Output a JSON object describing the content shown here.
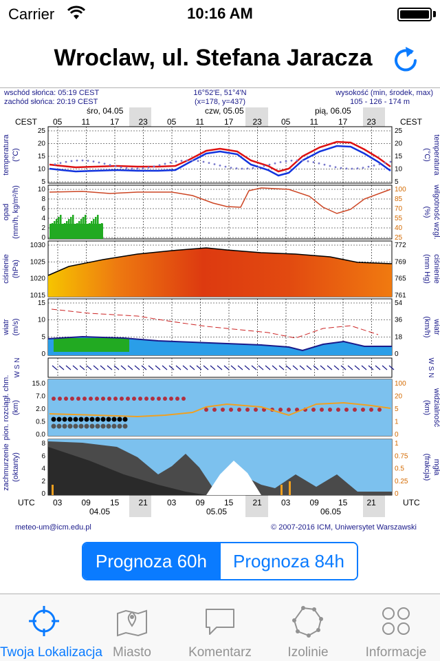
{
  "status": {
    "carrier": "Carrier",
    "time": "10:16 AM"
  },
  "nav": {
    "title": "Wroclaw, ul. Stefana Jaracza",
    "refresh_icon": "refresh-icon"
  },
  "meteogram": {
    "header": {
      "sunrise": "wschód słońca: 05:19 CEST",
      "sunset": "zachód słońca: 20:19 CEST",
      "coords": "16°52'E, 51°4'N",
      "grid": "(x=178, y=437)",
      "elev_title": "wysokość (min, środek, max)",
      "elev_values": "105 - 126 - 174 m"
    },
    "days_top": [
      "śro, 04.05",
      "czw, 05.05",
      "pią, 06.05"
    ],
    "tz_top": "CEST",
    "hours_top": [
      "05",
      "11",
      "17",
      "23",
      "05",
      "11",
      "17",
      "23",
      "05",
      "11",
      "17",
      "23"
    ],
    "hours_bottom": [
      "03",
      "09",
      "15",
      "21",
      "03",
      "09",
      "15",
      "21",
      "03",
      "09",
      "15",
      "21"
    ],
    "days_bottom": [
      "04.05",
      "05.05",
      "06.05"
    ],
    "tz_bottom": "UTC",
    "panels": {
      "temperature": {
        "left_label": "temperatura",
        "left_unit": "(°C)",
        "right_label": "temperatura",
        "right_unit": "(°C)",
        "ticks_left": [
          "25",
          "20",
          "15",
          "10",
          "5"
        ],
        "ticks_right": [
          "25",
          "20",
          "15",
          "10",
          "5"
        ],
        "colors": {
          "temp": "#dd1111",
          "dew": "#1133dd",
          "chill": "#7777cc"
        }
      },
      "precip": {
        "left_label": "opad",
        "left_unit": "(mm/h, kg/m²/h)",
        "right_label": "wilgotność wzgl.",
        "right_unit": "(%)",
        "ticks_left": [
          "10",
          "8",
          "6",
          "4",
          "2",
          "0"
        ],
        "ticks_right": [
          "100",
          "85",
          "70",
          "55",
          "40",
          "25"
        ],
        "colors": {
          "rain": "#22aa22",
          "humidity": "#cc4422"
        }
      },
      "pressure": {
        "left_label": "ciśnienie",
        "left_unit": "(hPa)",
        "right_label": "ciśnienie",
        "right_unit": "(mm Hg)",
        "ticks_left": [
          "1030",
          "1025",
          "1020",
          "1015"
        ],
        "ticks_right": [
          "772",
          "769",
          "765",
          "761"
        ]
      },
      "wind": {
        "left_label": "wiatr",
        "left_unit": "(m/s)",
        "right_label": "wiatr",
        "right_unit": "(km/h)",
        "ticks_left": [
          "15",
          "10",
          "5",
          "0"
        ],
        "ticks_right": [
          "54",
          "36",
          "18",
          "0"
        ]
      },
      "winddir": {
        "left_glyphs": "W S N",
        "right_glyphs": "W S N"
      },
      "visibility": {
        "left_label": "pion. rozciągł. chm.",
        "left_unit": "(km)",
        "right_label": "widzialność",
        "right_unit": "(km)",
        "ticks_left": [
          "15.0",
          "7.0",
          "2.0",
          "0.5",
          "0.0"
        ],
        "ticks_right": [
          "100",
          "20",
          "5",
          "1",
          "0"
        ]
      },
      "clouds": {
        "left_label": "zachmurzenie",
        "left_unit": "(oktanty)",
        "right_label": "mgła",
        "right_unit": "(frakcja)",
        "ticks_left": [
          "8",
          "6",
          "4",
          "2",
          "0"
        ],
        "ticks_right": [
          "1",
          "0.75",
          "0.5",
          "0.25",
          "0"
        ]
      }
    },
    "footer": {
      "email": "meteo-um@icm.edu.pl",
      "copyright": "© 2007-2016 ICM, Uniwersytet Warszawski"
    }
  },
  "forecast_toggle": {
    "options": [
      "Prognoza 60h",
      "Prognoza 84h"
    ],
    "selected": "Prognoza 60h"
  },
  "tabs": [
    {
      "label": "Twoja Lokalizacja",
      "icon": "crosshair-icon",
      "active": true
    },
    {
      "label": "Miasto",
      "icon": "map-pin-icon",
      "active": false
    },
    {
      "label": "Komentarz",
      "icon": "speech-bubble-icon",
      "active": false
    },
    {
      "label": "Izolinie",
      "icon": "isoline-icon",
      "active": false
    },
    {
      "label": "Informacje",
      "icon": "grid-circles-icon",
      "active": false
    }
  ]
}
